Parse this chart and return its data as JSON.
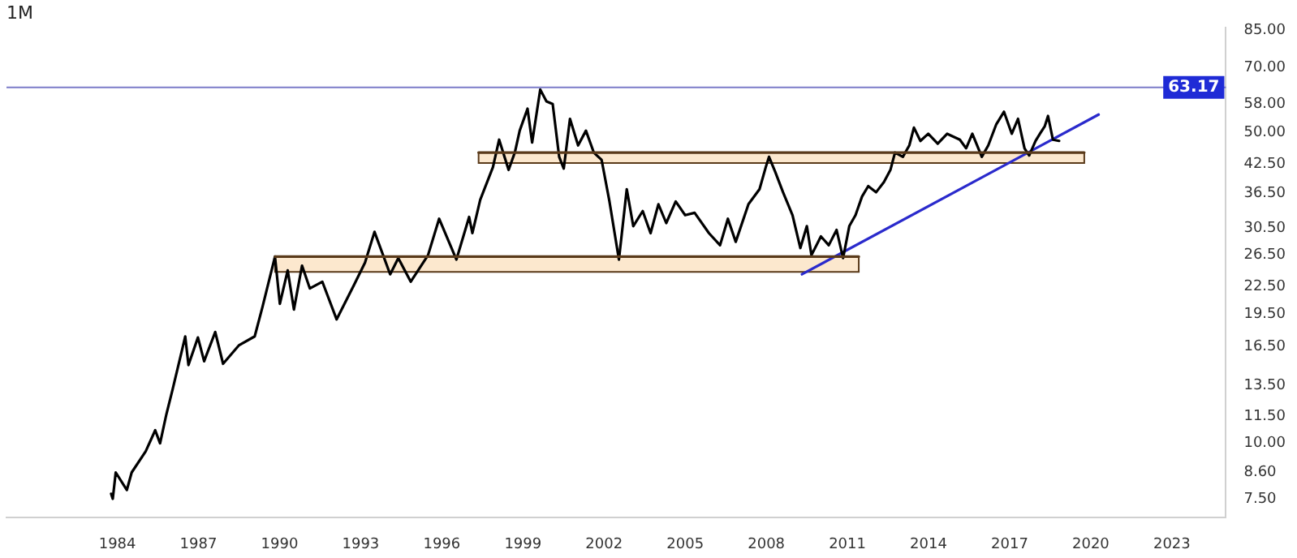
{
  "chart_data": {
    "type": "line",
    "title": "1M",
    "log": true,
    "grid": false,
    "legend": false,
    "marker": "none",
    "line_style": "solid",
    "xlim": [
      1979.9,
      2025.0
    ],
    "xticks": [
      1984,
      1987,
      1990,
      1993,
      1996,
      1999,
      2002,
      2005,
      2008,
      2011,
      2014,
      2017,
      2020,
      2023
    ],
    "ylim": [
      6.8,
      86
    ],
    "yticks": [
      {
        "value": 7.5,
        "label": "7.50"
      },
      {
        "value": 8.6,
        "label": "8.60"
      },
      {
        "value": 10,
        "label": "10.00"
      },
      {
        "value": 11.5,
        "label": "11.50"
      },
      {
        "value": 13.5,
        "label": "13.50"
      },
      {
        "value": 16.5,
        "label": "16.50"
      },
      {
        "value": 19.5,
        "label": "19.50"
      },
      {
        "value": 22.5,
        "label": "22.50"
      },
      {
        "value": 26.5,
        "label": "26.50"
      },
      {
        "value": 30.5,
        "label": "30.50"
      },
      {
        "value": 36.5,
        "label": "36.50"
      },
      {
        "value": 42.5,
        "label": "42.50"
      },
      {
        "value": 50,
        "label": "50.00"
      },
      {
        "value": 58,
        "label": "58.00"
      },
      {
        "value": 70,
        "label": "70.00"
      },
      {
        "value": 85,
        "label": "85.00"
      }
    ],
    "ref_lines": [
      {
        "axis": "y",
        "value": 63.17,
        "label": "63.17",
        "color": "#7b7bc8"
      }
    ],
    "series": [
      {
        "color": "#5a3a1a",
        "x": [
          1997.36,
          2019.76
        ],
        "values": [
          45.1,
          45.1
        ],
        "lower": [
          42.7,
          42.7
        ],
        "upper": [
          45.1,
          45.1
        ]
      },
      {
        "color": "#5a3a1a",
        "x": [
          1989.83,
          2011.42
        ],
        "values": [
          26.3,
          26.3
        ],
        "lower": [
          24.3,
          24.3
        ],
        "upper": [
          26.3,
          26.3
        ]
      },
      {
        "color": "#000000",
        "x": [
          1983.77,
          1983.83,
          1983.94,
          1984.35,
          1984.53,
          1985.05,
          1985.4,
          1985.58,
          1985.81,
          1986.04,
          1986.39,
          1986.51,
          1986.63,
          1986.98,
          1987.21,
          1987.62,
          1987.91,
          1988.49,
          1989.08,
          1989.37,
          1989.83,
          1990.01,
          1990.3,
          1990.53,
          1990.83,
          1991.12,
          1991.58,
          1992.11,
          1992.75,
          1993.16,
          1993.51,
          1994.09,
          1994.39,
          1994.85,
          1995.49,
          1995.9,
          1996.54,
          1997.01,
          1997.13,
          1997.42,
          1997.89,
          1998.12,
          1998.47,
          1998.7,
          1998.88,
          1999.17,
          1999.34,
          1999.64,
          1999.87,
          2000.1,
          2000.34,
          2000.51,
          2000.74,
          2001.04,
          2001.33,
          2001.62,
          2001.91,
          2002.2,
          2002.55,
          2002.84,
          2003.08,
          2003.43,
          2003.72,
          2004.01,
          2004.3,
          2004.65,
          2005.0,
          2005.35,
          2005.88,
          2006.29,
          2006.58,
          2006.87,
          2007.34,
          2007.75,
          2007.98,
          2008.1,
          2008.33,
          2008.62,
          2008.97,
          2009.26,
          2009.5,
          2009.67,
          2010.02,
          2010.31,
          2010.6,
          2010.84,
          2011.07,
          2011.3,
          2011.54,
          2011.77,
          2012.06,
          2012.35,
          2012.59,
          2012.76,
          2013.05,
          2013.29,
          2013.46,
          2013.7,
          2013.99,
          2014.34,
          2014.69,
          2015.16,
          2015.39,
          2015.62,
          2015.97,
          2016.21,
          2016.5,
          2016.79,
          2017.08,
          2017.31,
          2017.55,
          2017.72,
          2017.96,
          2018.13,
          2018.3,
          2018.42,
          2018.6,
          2018.83
        ],
        "values": [
          7.7,
          7.5,
          8.6,
          7.85,
          8.6,
          9.6,
          10.7,
          10.0,
          11.6,
          13.2,
          16.2,
          17.4,
          15.0,
          17.3,
          15.3,
          17.8,
          15.1,
          16.6,
          17.4,
          20.3,
          26.3,
          20.6,
          24.5,
          20.0,
          25.1,
          22.3,
          23.1,
          19.0,
          22.7,
          25.5,
          29.9,
          24.0,
          26.1,
          23.1,
          26.5,
          32.0,
          25.9,
          32.3,
          29.7,
          35.3,
          41.8,
          48.2,
          41.2,
          45.1,
          50.5,
          56.6,
          47.5,
          62.5,
          58.8,
          58.0,
          44.1,
          41.5,
          53.7,
          46.8,
          50.5,
          45.1,
          43.4,
          35.0,
          25.9,
          37.3,
          30.8,
          33.3,
          29.7,
          34.5,
          31.3,
          35.0,
          32.6,
          33.0,
          29.7,
          27.9,
          32.0,
          28.4,
          34.5,
          37.3,
          41.8,
          44.1,
          40.8,
          36.7,
          32.6,
          27.5,
          30.8,
          26.5,
          29.2,
          27.9,
          30.2,
          26.1,
          30.8,
          32.6,
          35.9,
          37.9,
          36.7,
          38.7,
          41.2,
          45.1,
          44.1,
          46.8,
          51.3,
          47.9,
          49.7,
          47.2,
          49.7,
          48.2,
          46.1,
          49.7,
          44.1,
          46.8,
          52.1,
          55.7,
          49.7,
          53.7,
          46.1,
          44.4,
          47.9,
          49.8,
          51.7,
          54.5,
          48.2,
          47.9
        ]
      },
      {
        "color": "#2a2acc",
        "x": [
          2009.32,
          2020.29
        ],
        "values": [
          24.0,
          54.9
        ]
      }
    ]
  }
}
